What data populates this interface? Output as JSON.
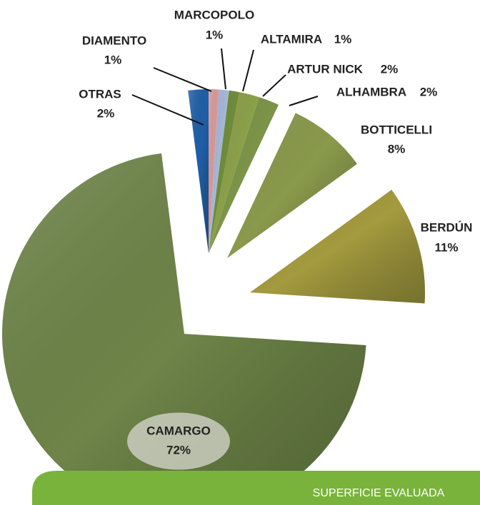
{
  "chart_data": {
    "type": "pie",
    "categories": [
      "OTRAS",
      "DIAMENTO",
      "MARCOPOLO",
      "ALTAMIRA",
      "ARTUR NICK",
      "ALHAMBRA",
      "BOTTICELLI",
      "BERDÚN",
      "CAMARGO"
    ],
    "values": [
      2,
      1,
      1,
      1,
      2,
      2,
      8,
      11,
      72
    ],
    "value_labels": [
      "2%",
      "1%",
      "1%",
      "1%",
      "2%",
      "2%",
      "8%",
      "11%",
      "72%"
    ],
    "colors": [
      "#1f5fa8",
      "#d99a9a",
      "#a7b8d8",
      "#6f8c3c",
      "#8ba04a",
      "#7c9448",
      "#8a9a4c",
      "#a49a3e",
      "#6e8448"
    ]
  },
  "footer": "SUPERFICIE EVALUADA"
}
